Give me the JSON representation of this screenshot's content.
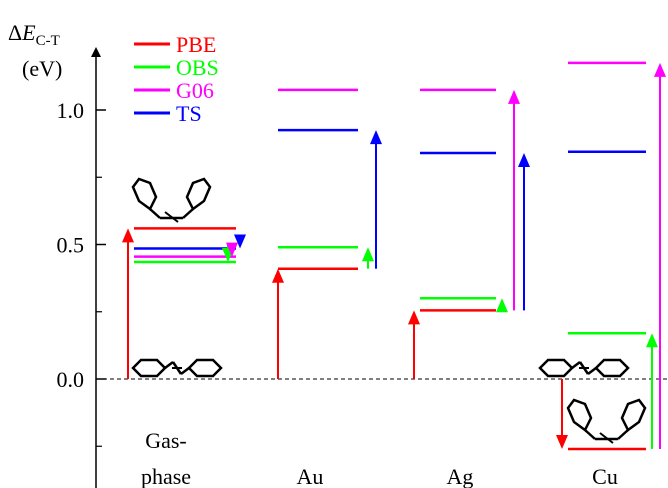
{
  "chart_data": {
    "type": "bar",
    "ylabel_symbol": "ΔE",
    "ylabel_subscript": "C-T",
    "ylabel_unit": "(eV)",
    "yticks": [
      "0.0",
      "0.5",
      "1.0"
    ],
    "ytick_values": [
      0.0,
      0.5,
      1.0
    ],
    "ylim": [
      -0.3,
      1.22
    ],
    "categories": [
      {
        "line1": "Gas-",
        "line2": "phase"
      },
      {
        "line1": "",
        "line2": "Au"
      },
      {
        "line1": "",
        "line2": "Ag"
      },
      {
        "line1": "",
        "line2": "Cu"
      }
    ],
    "legend_position": "top-left",
    "series": [
      {
        "name": "PBE",
        "color": "#ff0000",
        "values": [
          0.56,
          0.41,
          0.255,
          -0.26
        ]
      },
      {
        "name": "OBS",
        "color": "#00ff00",
        "values": [
          0.435,
          0.49,
          0.3,
          0.17
        ]
      },
      {
        "name": "G06",
        "color": "#ff00ff",
        "values": [
          0.455,
          1.075,
          1.075,
          1.175
        ]
      },
      {
        "name": "TS",
        "color": "#0000ff",
        "values": [
          0.485,
          0.925,
          0.84,
          0.845
        ]
      }
    ],
    "zero_line": "dashed"
  }
}
